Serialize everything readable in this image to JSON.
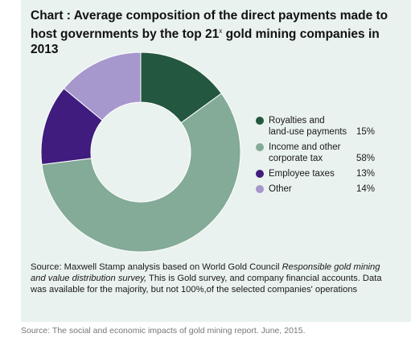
{
  "chart_data": {
    "type": "pie",
    "title_prefix": "Chart",
    "title_line1": ": Average composition of the direct payments made to",
    "title_line2_a": "host governments by the top 21",
    "title_sup": "x",
    "title_line2_b": " gold mining companies in 2013",
    "donut": true,
    "series": [
      {
        "label": "Royalties and\nland-use payments",
        "value": 15,
        "pct_label": "15%",
        "color": "#24573f"
      },
      {
        "label": "Income and other\ncorporate tax",
        "value": 58,
        "pct_label": "58%",
        "color": "#84aa98"
      },
      {
        "label": "Employee taxes",
        "value": 13,
        "pct_label": "13%",
        "color": "#3f1c7d"
      },
      {
        "label": "Other",
        "value": 14,
        "pct_label": "14%",
        "color": "#a697cc"
      }
    ],
    "legend_position": "right"
  },
  "source": {
    "prefix": "Source: Maxwell Stamp analysis based on World Gold Council ",
    "italic": "Responsible gold mining and value distribution survey,",
    "suffix": " This is Gold survey, and company financial accounts. Data was available for the majority, but not 100%,of the selected companies' operations"
  },
  "footnote": "Source: The social and economic impacts of gold mining report. June, 2015."
}
